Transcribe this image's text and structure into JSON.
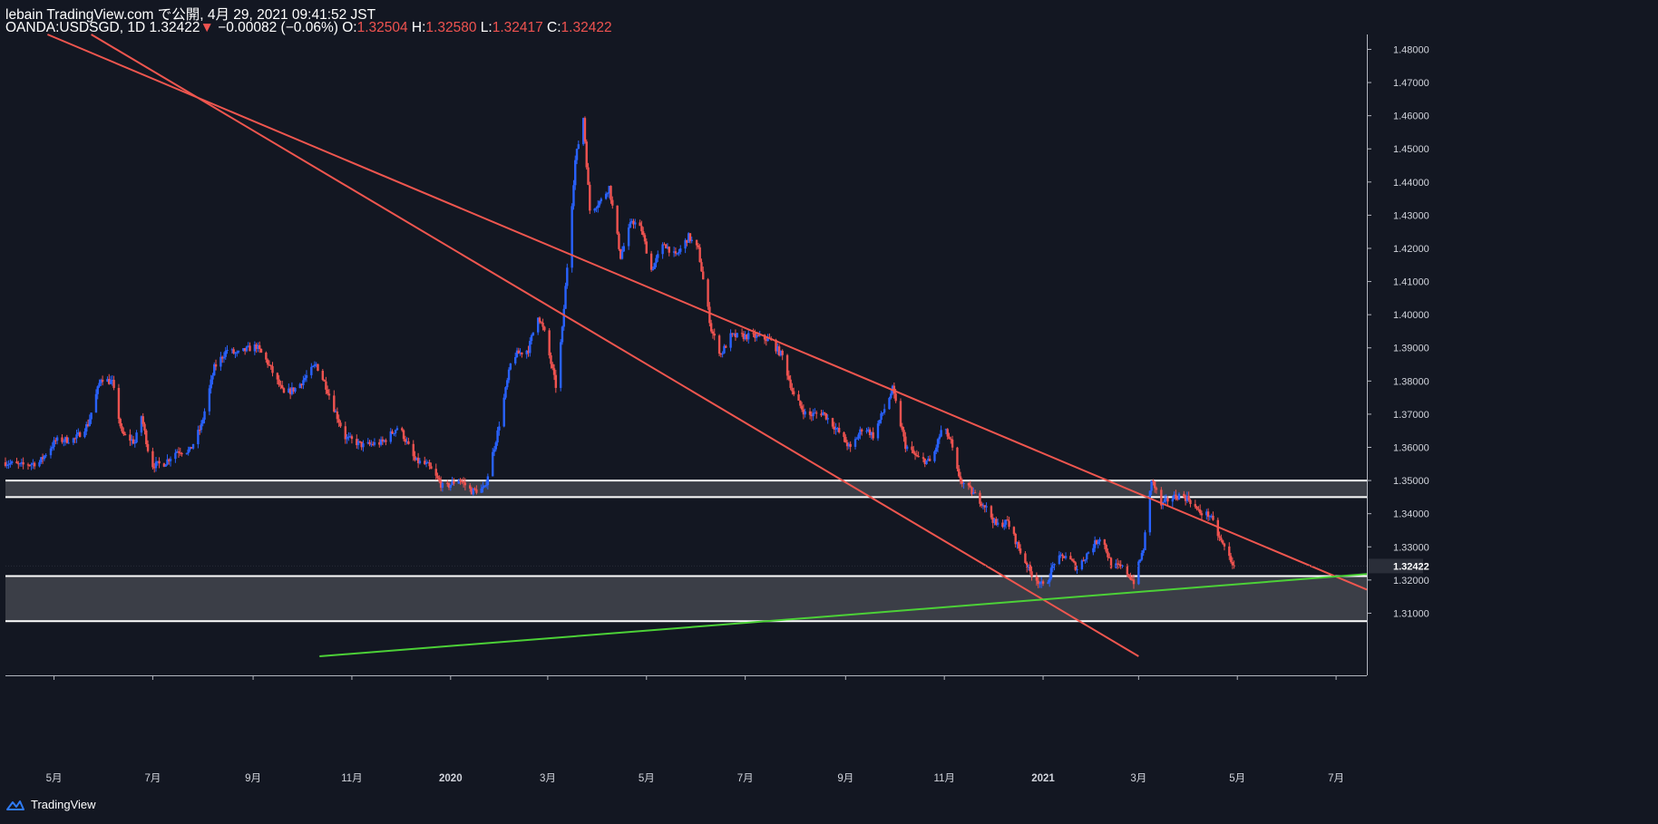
{
  "header": {
    "line1": "lebain TradingView.com で公開, 4月 29, 2021 09:41:52 JST",
    "symbol": "OANDA:USDSGD, 1D",
    "last": "1.32422",
    "change": "−0.00082 (−0.06%)",
    "o_label": "O:",
    "o_value": "1.32504",
    "h_label": "H:",
    "h_value": "1.32580",
    "l_label": "L:",
    "l_value": "1.32417",
    "c_label": "C:",
    "c_value": "1.32422"
  },
  "footer": {
    "brand": "TradingView"
  },
  "colors": {
    "background": "#131722",
    "up": "#2962ff",
    "down": "#ef5350",
    "channel": "#f0564f",
    "trendline": "#4cd137",
    "zone": "#3b3e47",
    "zone_edge": "#ffffff",
    "text": "#d1d4dc"
  },
  "chart_data": {
    "type": "candlestick",
    "symbol": "OANDA:USDSGD",
    "interval": "1D",
    "ylim": [
      1.297,
      1.4845
    ],
    "y_ticks": [
      1.31,
      1.32,
      1.33,
      1.34,
      1.35,
      1.36,
      1.37,
      1.38,
      1.39,
      1.4,
      1.41,
      1.42,
      1.43,
      1.44,
      1.45,
      1.46,
      1.47,
      1.48
    ],
    "y_tick_labels": [
      "1.31000",
      "1.32000",
      "1.33000",
      "1.34000",
      "1.35000",
      "1.36000",
      "1.37000",
      "1.38000",
      "1.39000",
      "1.40000",
      "1.41000",
      "1.42000",
      "1.43000",
      "1.44000",
      "1.45000",
      "1.46000",
      "1.47000",
      "1.48000"
    ],
    "last_price": 1.32422,
    "last_price_label": "1.32422",
    "x_range": [
      "2019-04-01",
      "2021-07-20"
    ],
    "x_ticks": [
      {
        "date": "2019-05-01",
        "label": "5月",
        "bold": false
      },
      {
        "date": "2019-07-01",
        "label": "7月",
        "bold": false
      },
      {
        "date": "2019-09-01",
        "label": "9月",
        "bold": false
      },
      {
        "date": "2019-11-01",
        "label": "11月",
        "bold": false
      },
      {
        "date": "2020-01-01",
        "label": "2020",
        "bold": true
      },
      {
        "date": "2020-03-01",
        "label": "3月",
        "bold": false
      },
      {
        "date": "2020-05-01",
        "label": "5月",
        "bold": false
      },
      {
        "date": "2020-07-01",
        "label": "7月",
        "bold": false
      },
      {
        "date": "2020-09-01",
        "label": "9月",
        "bold": false
      },
      {
        "date": "2020-11-01",
        "label": "11月",
        "bold": false
      },
      {
        "date": "2021-01-01",
        "label": "2021",
        "bold": true
      },
      {
        "date": "2021-03-01",
        "label": "3月",
        "bold": false
      },
      {
        "date": "2021-05-01",
        "label": "5月",
        "bold": false
      },
      {
        "date": "2021-07-01",
        "label": "7月",
        "bold": false
      }
    ],
    "price_path": [
      [
        "2019-04-01",
        1.3555
      ],
      [
        "2019-04-10",
        1.3545
      ],
      [
        "2019-04-22",
        1.3555
      ],
      [
        "2019-05-02",
        1.362
      ],
      [
        "2019-05-14",
        1.3625
      ],
      [
        "2019-05-22",
        1.367
      ],
      [
        "2019-05-30",
        1.381
      ],
      [
        "2019-06-06",
        1.3795
      ],
      [
        "2019-06-12",
        1.364
      ],
      [
        "2019-06-20",
        1.3615
      ],
      [
        "2019-06-24",
        1.3695
      ],
      [
        "2019-06-30",
        1.3545
      ],
      [
        "2019-07-08",
        1.3552
      ],
      [
        "2019-07-16",
        1.359
      ],
      [
        "2019-07-24",
        1.359
      ],
      [
        "2019-07-31",
        1.3665
      ],
      [
        "2019-08-08",
        1.384
      ],
      [
        "2019-08-16",
        1.3895
      ],
      [
        "2019-08-22",
        1.388
      ],
      [
        "2019-08-28",
        1.3895
      ],
      [
        "2019-09-03",
        1.3905
      ],
      [
        "2019-09-10",
        1.3855
      ],
      [
        "2019-09-20",
        1.376
      ],
      [
        "2019-09-28",
        1.378
      ],
      [
        "2019-10-10",
        1.385
      ],
      [
        "2019-10-16",
        1.3785
      ],
      [
        "2019-10-22",
        1.3705
      ],
      [
        "2019-10-28",
        1.363
      ],
      [
        "2019-11-08",
        1.3605
      ],
      [
        "2019-11-20",
        1.3615
      ],
      [
        "2019-11-30",
        1.3665
      ],
      [
        "2019-12-10",
        1.356
      ],
      [
        "2019-12-18",
        1.3545
      ],
      [
        "2019-12-28",
        1.3475
      ],
      [
        "2020-01-06",
        1.3505
      ],
      [
        "2020-01-14",
        1.3468
      ],
      [
        "2020-01-22",
        1.3475
      ],
      [
        "2020-01-30",
        1.3645
      ],
      [
        "2020-02-08",
        1.3875
      ],
      [
        "2020-02-18",
        1.3895
      ],
      [
        "2020-02-24",
        1.4
      ],
      [
        "2020-02-28",
        1.3945
      ],
      [
        "2020-03-06",
        1.3785
      ],
      [
        "2020-03-10",
        1.3955
      ],
      [
        "2020-03-18",
        1.4465
      ],
      [
        "2020-03-23",
        1.4595
      ],
      [
        "2020-03-27",
        1.4315
      ],
      [
        "2020-04-03",
        1.4345
      ],
      [
        "2020-04-08",
        1.4385
      ],
      [
        "2020-04-15",
        1.4175
      ],
      [
        "2020-04-22",
        1.4285
      ],
      [
        "2020-04-28",
        1.4255
      ],
      [
        "2020-05-04",
        1.4135
      ],
      [
        "2020-05-12",
        1.4215
      ],
      [
        "2020-05-19",
        1.4175
      ],
      [
        "2020-05-27",
        1.4235
      ],
      [
        "2020-06-02",
        1.4195
      ],
      [
        "2020-06-10",
        1.3955
      ],
      [
        "2020-06-16",
        1.388
      ],
      [
        "2020-06-22",
        1.3935
      ],
      [
        "2020-07-06",
        1.3935
      ],
      [
        "2020-07-16",
        1.3925
      ],
      [
        "2020-07-24",
        1.3875
      ],
      [
        "2020-07-31",
        1.3755
      ],
      [
        "2020-08-08",
        1.3695
      ],
      [
        "2020-08-18",
        1.3705
      ],
      [
        "2020-08-28",
        1.3645
      ],
      [
        "2020-09-04",
        1.3595
      ],
      [
        "2020-09-12",
        1.3665
      ],
      [
        "2020-09-18",
        1.3635
      ],
      [
        "2020-09-24",
        1.3705
      ],
      [
        "2020-09-30",
        1.3775
      ],
      [
        "2020-10-08",
        1.3605
      ],
      [
        "2020-10-16",
        1.3565
      ],
      [
        "2020-10-24",
        1.3555
      ],
      [
        "2020-10-31",
        1.3665
      ],
      [
        "2020-11-05",
        1.3615
      ],
      [
        "2020-11-10",
        1.3505
      ],
      [
        "2020-11-18",
        1.3465
      ],
      [
        "2020-11-26",
        1.3425
      ],
      [
        "2020-12-03",
        1.3365
      ],
      [
        "2020-12-10",
        1.3375
      ],
      [
        "2020-12-18",
        1.3285
      ],
      [
        "2020-12-24",
        1.3225
      ],
      [
        "2021-01-02",
        1.3175
      ],
      [
        "2021-01-08",
        1.3255
      ],
      [
        "2021-01-15",
        1.3275
      ],
      [
        "2021-01-22",
        1.3235
      ],
      [
        "2021-01-29",
        1.3285
      ],
      [
        "2021-02-06",
        1.3335
      ],
      [
        "2021-02-12",
        1.3245
      ],
      [
        "2021-02-20",
        1.3235
      ],
      [
        "2021-02-26",
        1.3195
      ],
      [
        "2021-03-04",
        1.3295
      ],
      [
        "2021-03-09",
        1.3505
      ],
      [
        "2021-03-15",
        1.3425
      ],
      [
        "2021-03-20",
        1.3445
      ],
      [
        "2021-03-26",
        1.3455
      ],
      [
        "2021-04-01",
        1.3445
      ],
      [
        "2021-04-07",
        1.3405
      ],
      [
        "2021-04-14",
        1.3395
      ],
      [
        "2021-04-20",
        1.3325
      ],
      [
        "2021-04-29",
        1.32422
      ]
    ],
    "drawings": [
      {
        "kind": "zone",
        "name": "upper-resistance-zone",
        "from": 1.345,
        "to": 1.35
      },
      {
        "kind": "zone",
        "name": "lower-support-zone",
        "from": 1.3076,
        "to": 1.3212
      },
      {
        "kind": "line",
        "name": "upper-channel-line",
        "color": "channel",
        "p1": [
          "2019-04-27",
          1.4845
        ],
        "p2": [
          "2021-07-20",
          1.3171
        ]
      },
      {
        "kind": "line",
        "name": "lower-channel-line",
        "color": "channel",
        "p1": [
          "2019-05-24",
          1.4845
        ],
        "p2": [
          "2021-03-01",
          1.297
        ]
      },
      {
        "kind": "line",
        "name": "green-trendline",
        "color": "trendline",
        "p1": [
          "2019-10-12",
          1.297
        ],
        "p2": [
          "2021-07-20",
          1.3218
        ]
      }
    ]
  }
}
